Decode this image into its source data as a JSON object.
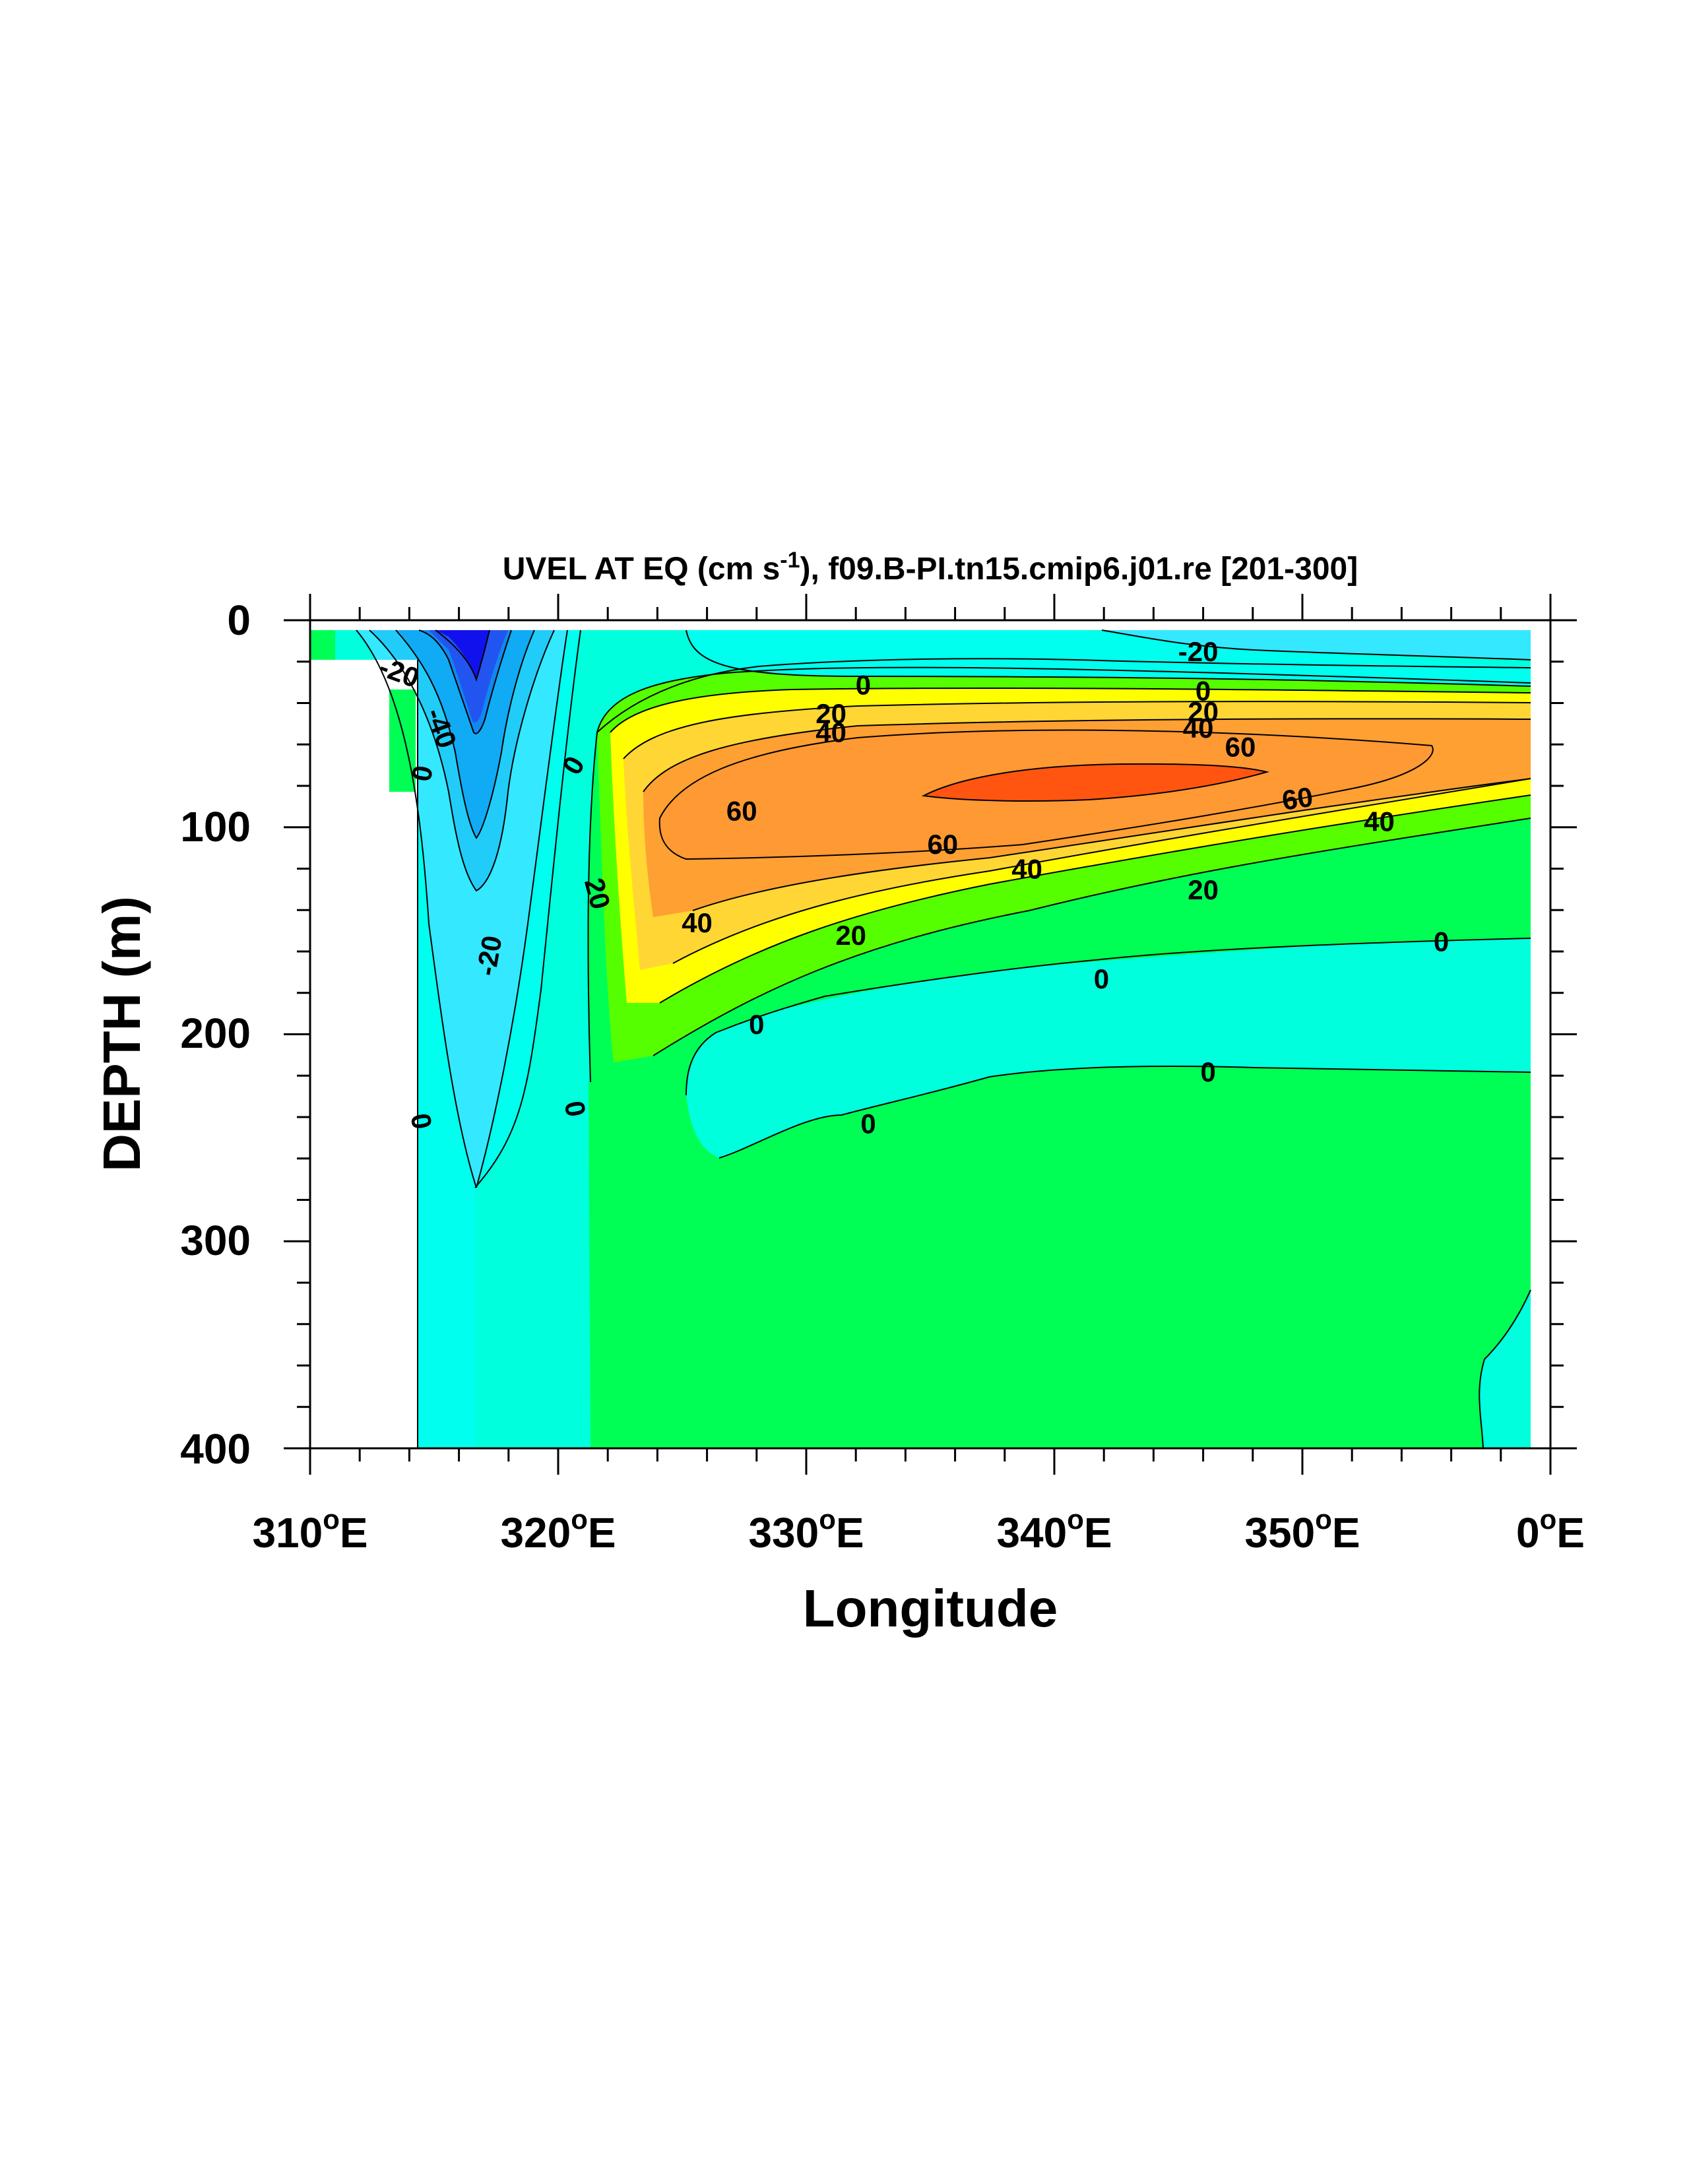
{
  "chart_data": {
    "type": "contour",
    "title": "UVEL AT EQ (cm s-1), f09.B-PI.tn15.cmip6.j01.re [201-300]",
    "title_parts": {
      "before": "UVEL AT EQ (cm s",
      "sup": "-1",
      "after": "), f09.B-PI.tn15.cmip6.j01.re [201-300]"
    },
    "xlabel": "Longitude",
    "ylabel": "DEPTH (m)",
    "xlim": [
      310,
      360
    ],
    "ylim": [
      400,
      0
    ],
    "x_ticks": [
      {
        "value": 310,
        "num": "310",
        "sup": "o",
        "suffix": "E"
      },
      {
        "value": 320,
        "num": "320",
        "sup": "o",
        "suffix": "E"
      },
      {
        "value": 330,
        "num": "330",
        "sup": "o",
        "suffix": "E"
      },
      {
        "value": 340,
        "num": "340",
        "sup": "o",
        "suffix": "E"
      },
      {
        "value": 350,
        "num": "350",
        "sup": "o",
        "suffix": "E"
      },
      {
        "value": 360,
        "num": "0",
        "sup": "o",
        "suffix": "E"
      }
    ],
    "y_ticks": [
      {
        "value": 0,
        "label": "0"
      },
      {
        "value": 100,
        "label": "100"
      },
      {
        "value": 200,
        "label": "200"
      },
      {
        "value": 300,
        "label": "300"
      },
      {
        "value": 400,
        "label": "400"
      }
    ],
    "contour_levels": [
      -60,
      -50,
      -40,
      -30,
      -20,
      -10,
      0,
      10,
      20,
      30,
      40,
      50,
      60,
      70
    ],
    "colors": {
      "lt_m60": "#1111ee",
      "m60_m50": "#2255f0",
      "m50_m40": "#1188f0",
      "m40_m30": "#11aaf5",
      "m30_m20": "#22ccf8",
      "m20_m10": "#33e8ff",
      "m10_0": "#00ffee",
      "0_10": "#00ffdd",
      "10_20": "#00ff55",
      "20_30": "#55ff00",
      "30_40": "#ffff00",
      "40_50": "#ffd633",
      "50_60": "#ffa033",
      "60_70": "#ff9933",
      "gt_70": "#ff5511",
      "missing": "#ffffff"
    },
    "contour_labels": [
      {
        "text": "-20",
        "x": 345.8,
        "y": 15,
        "rot": 0
      },
      {
        "text": "0",
        "x": 332.3,
        "y": 31,
        "rot": 0
      },
      {
        "text": "0",
        "x": 346.0,
        "y": 34,
        "rot": 0
      },
      {
        "text": "20",
        "x": 331.0,
        "y": 45,
        "rot": 0
      },
      {
        "text": "20",
        "x": 346.0,
        "y": 44,
        "rot": 0
      },
      {
        "text": "40",
        "x": 331.0,
        "y": 54,
        "rot": 0
      },
      {
        "text": "40",
        "x": 345.8,
        "y": 52,
        "rot": 0
      },
      {
        "text": "60",
        "x": 347.5,
        "y": 61,
        "rot": 0
      },
      {
        "text": "60",
        "x": 327.4,
        "y": 92,
        "rot": 0
      },
      {
        "text": "60",
        "x": 335.5,
        "y": 108,
        "rot": 0
      },
      {
        "text": "60",
        "x": 349.8,
        "y": 86,
        "rot": -8
      },
      {
        "text": "40",
        "x": 353.1,
        "y": 97,
        "rot": 0
      },
      {
        "text": "40",
        "x": 338.9,
        "y": 120,
        "rot": 0
      },
      {
        "text": "40",
        "x": 325.6,
        "y": 146,
        "rot": 0
      },
      {
        "text": "20",
        "x": 346.0,
        "y": 130,
        "rot": 0
      },
      {
        "text": "20",
        "x": 331.8,
        "y": 152,
        "rot": 0
      },
      {
        "text": "20",
        "x": 321.6,
        "y": 132,
        "rot": 75
      },
      {
        "text": "0",
        "x": 355.6,
        "y": 155,
        "rot": 0
      },
      {
        "text": "0",
        "x": 341.9,
        "y": 173,
        "rot": 0
      },
      {
        "text": "0",
        "x": 328.0,
        "y": 195,
        "rot": 0
      },
      {
        "text": "0",
        "x": 346.2,
        "y": 218,
        "rot": 0
      },
      {
        "text": "0",
        "x": 332.5,
        "y": 243,
        "rot": 0
      },
      {
        "text": "0",
        "x": 320.7,
        "y": 236,
        "rot": 80
      },
      {
        "text": "0",
        "x": 320.6,
        "y": 70,
        "rot": -60
      },
      {
        "text": "0",
        "x": 314.5,
        "y": 74,
        "rot": -80
      },
      {
        "text": "0",
        "x": 314.5,
        "y": 242,
        "rot": 80
      },
      {
        "text": "-20",
        "x": 313.6,
        "y": 25,
        "rot": 20
      },
      {
        "text": "-40",
        "x": 315.3,
        "y": 52,
        "rot": 70
      },
      {
        "text": "-20",
        "x": 317.2,
        "y": 162,
        "rot": -80
      }
    ]
  }
}
